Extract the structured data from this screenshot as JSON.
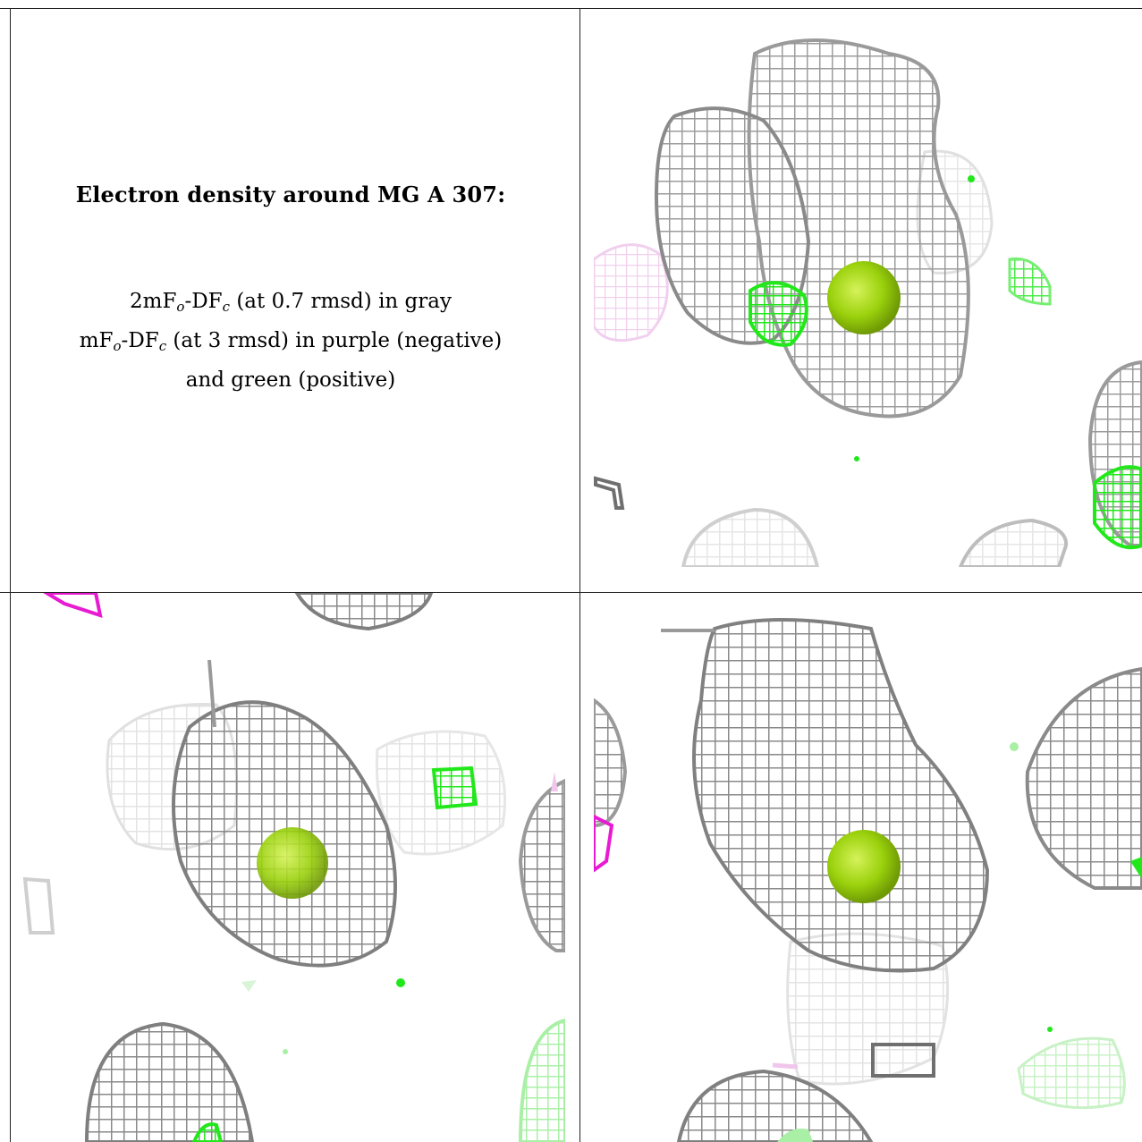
{
  "caption": {
    "title": "Electron density around MG A 307:",
    "line1_prefix": "2mF",
    "line1_sub1": "o",
    "line1_mid": "-DF",
    "line1_sub2": "c",
    "line1_suffix": " (at 0.7 rmsd) in gray",
    "line2_prefix": "mF",
    "line2_sub1": "o",
    "line2_mid": "-DF",
    "line2_sub2": "c",
    "line2_suffix": " (at 3 rmsd) in purple (negative)",
    "line3": "and green (positive)"
  },
  "colors": {
    "mesh_gray": "#8f8f8f",
    "mesh_gray_light": "#d6d6d6",
    "mesh_green": "#22e81b",
    "mesh_green_light": "#a9f0a6",
    "mesh_purple": "#e81bd2",
    "mesh_purple_light": "#f1c6ec",
    "ion_yellow_green": "#9ad10c"
  },
  "panels": [
    {
      "id": "view-1",
      "description_name": "density-view-top-right"
    },
    {
      "id": "view-2",
      "description_name": "density-view-bottom-left"
    },
    {
      "id": "view-3",
      "description_name": "density-view-bottom-right"
    }
  ]
}
